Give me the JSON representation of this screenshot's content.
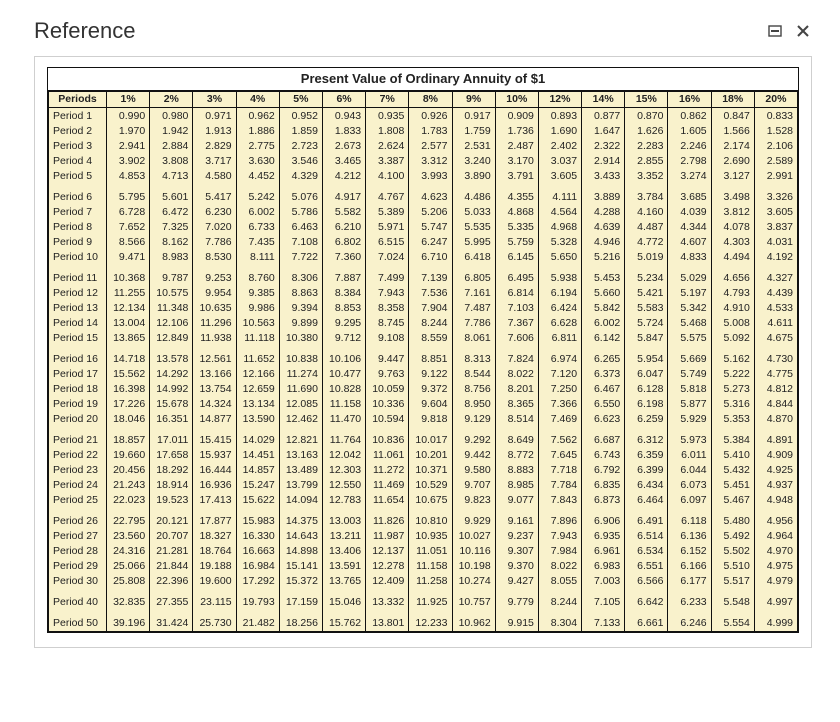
{
  "header": {
    "title": "Reference"
  },
  "table": {
    "caption": "Present Value of Ordinary Annuity of $1",
    "periods_header": "Periods",
    "rates": [
      "1%",
      "2%",
      "3%",
      "4%",
      "5%",
      "6%",
      "7%",
      "8%",
      "9%",
      "10%",
      "12%",
      "14%",
      "15%",
      "16%",
      "18%",
      "20%"
    ],
    "colors": {
      "cell_bg": "#f9f2cc",
      "border": "#111111",
      "caption_bg": "#ffffff"
    },
    "font_size_pt": 8,
    "rows": [
      {
        "label": "Period 1",
        "values": [
          "0.990",
          "0.980",
          "0.971",
          "0.962",
          "0.952",
          "0.943",
          "0.935",
          "0.926",
          "0.917",
          "0.909",
          "0.893",
          "0.877",
          "0.870",
          "0.862",
          "0.847",
          "0.833"
        ]
      },
      {
        "label": "Period 2",
        "values": [
          "1.970",
          "1.942",
          "1.913",
          "1.886",
          "1.859",
          "1.833",
          "1.808",
          "1.783",
          "1.759",
          "1.736",
          "1.690",
          "1.647",
          "1.626",
          "1.605",
          "1.566",
          "1.528"
        ]
      },
      {
        "label": "Period 3",
        "values": [
          "2.941",
          "2.884",
          "2.829",
          "2.775",
          "2.723",
          "2.673",
          "2.624",
          "2.577",
          "2.531",
          "2.487",
          "2.402",
          "2.322",
          "2.283",
          "2.246",
          "2.174",
          "2.106"
        ]
      },
      {
        "label": "Period 4",
        "values": [
          "3.902",
          "3.808",
          "3.717",
          "3.630",
          "3.546",
          "3.465",
          "3.387",
          "3.312",
          "3.240",
          "3.170",
          "3.037",
          "2.914",
          "2.855",
          "2.798",
          "2.690",
          "2.589"
        ]
      },
      {
        "label": "Period 5",
        "values": [
          "4.853",
          "4.713",
          "4.580",
          "4.452",
          "4.329",
          "4.212",
          "4.100",
          "3.993",
          "3.890",
          "3.791",
          "3.605",
          "3.433",
          "3.352",
          "3.274",
          "3.127",
          "2.991"
        ]
      },
      {
        "label": "Period 6",
        "values": [
          "5.795",
          "5.601",
          "5.417",
          "5.242",
          "5.076",
          "4.917",
          "4.767",
          "4.623",
          "4.486",
          "4.355",
          "4.111",
          "3.889",
          "3.784",
          "3.685",
          "3.498",
          "3.326"
        ]
      },
      {
        "label": "Period 7",
        "values": [
          "6.728",
          "6.472",
          "6.230",
          "6.002",
          "5.786",
          "5.582",
          "5.389",
          "5.206",
          "5.033",
          "4.868",
          "4.564",
          "4.288",
          "4.160",
          "4.039",
          "3.812",
          "3.605"
        ]
      },
      {
        "label": "Period 8",
        "values": [
          "7.652",
          "7.325",
          "7.020",
          "6.733",
          "6.463",
          "6.210",
          "5.971",
          "5.747",
          "5.535",
          "5.335",
          "4.968",
          "4.639",
          "4.487",
          "4.344",
          "4.078",
          "3.837"
        ]
      },
      {
        "label": "Period 9",
        "values": [
          "8.566",
          "8.162",
          "7.786",
          "7.435",
          "7.108",
          "6.802",
          "6.515",
          "6.247",
          "5.995",
          "5.759",
          "5.328",
          "4.946",
          "4.772",
          "4.607",
          "4.303",
          "4.031"
        ]
      },
      {
        "label": "Period 10",
        "values": [
          "9.471",
          "8.983",
          "8.530",
          "8.111",
          "7.722",
          "7.360",
          "7.024",
          "6.710",
          "6.418",
          "6.145",
          "5.650",
          "5.216",
          "5.019",
          "4.833",
          "4.494",
          "4.192"
        ]
      },
      {
        "label": "Period 11",
        "values": [
          "10.368",
          "9.787",
          "9.253",
          "8.760",
          "8.306",
          "7.887",
          "7.499",
          "7.139",
          "6.805",
          "6.495",
          "5.938",
          "5.453",
          "5.234",
          "5.029",
          "4.656",
          "4.327"
        ]
      },
      {
        "label": "Period 12",
        "values": [
          "11.255",
          "10.575",
          "9.954",
          "9.385",
          "8.863",
          "8.384",
          "7.943",
          "7.536",
          "7.161",
          "6.814",
          "6.194",
          "5.660",
          "5.421",
          "5.197",
          "4.793",
          "4.439"
        ]
      },
      {
        "label": "Period 13",
        "values": [
          "12.134",
          "11.348",
          "10.635",
          "9.986",
          "9.394",
          "8.853",
          "8.358",
          "7.904",
          "7.487",
          "7.103",
          "6.424",
          "5.842",
          "5.583",
          "5.342",
          "4.910",
          "4.533"
        ]
      },
      {
        "label": "Period 14",
        "values": [
          "13.004",
          "12.106",
          "11.296",
          "10.563",
          "9.899",
          "9.295",
          "8.745",
          "8.244",
          "7.786",
          "7.367",
          "6.628",
          "6.002",
          "5.724",
          "5.468",
          "5.008",
          "4.611"
        ]
      },
      {
        "label": "Period 15",
        "values": [
          "13.865",
          "12.849",
          "11.938",
          "11.118",
          "10.380",
          "9.712",
          "9.108",
          "8.559",
          "8.061",
          "7.606",
          "6.811",
          "6.142",
          "5.847",
          "5.575",
          "5.092",
          "4.675"
        ]
      },
      {
        "label": "Period 16",
        "values": [
          "14.718",
          "13.578",
          "12.561",
          "11.652",
          "10.838",
          "10.106",
          "9.447",
          "8.851",
          "8.313",
          "7.824",
          "6.974",
          "6.265",
          "5.954",
          "5.669",
          "5.162",
          "4.730"
        ]
      },
      {
        "label": "Period 17",
        "values": [
          "15.562",
          "14.292",
          "13.166",
          "12.166",
          "11.274",
          "10.477",
          "9.763",
          "9.122",
          "8.544",
          "8.022",
          "7.120",
          "6.373",
          "6.047",
          "5.749",
          "5.222",
          "4.775"
        ]
      },
      {
        "label": "Period 18",
        "values": [
          "16.398",
          "14.992",
          "13.754",
          "12.659",
          "11.690",
          "10.828",
          "10.059",
          "9.372",
          "8.756",
          "8.201",
          "7.250",
          "6.467",
          "6.128",
          "5.818",
          "5.273",
          "4.812"
        ]
      },
      {
        "label": "Period 19",
        "values": [
          "17.226",
          "15.678",
          "14.324",
          "13.134",
          "12.085",
          "11.158",
          "10.336",
          "9.604",
          "8.950",
          "8.365",
          "7.366",
          "6.550",
          "6.198",
          "5.877",
          "5.316",
          "4.844"
        ]
      },
      {
        "label": "Period 20",
        "values": [
          "18.046",
          "16.351",
          "14.877",
          "13.590",
          "12.462",
          "11.470",
          "10.594",
          "9.818",
          "9.129",
          "8.514",
          "7.469",
          "6.623",
          "6.259",
          "5.929",
          "5.353",
          "4.870"
        ]
      },
      {
        "label": "Period 21",
        "values": [
          "18.857",
          "17.011",
          "15.415",
          "14.029",
          "12.821",
          "11.764",
          "10.836",
          "10.017",
          "9.292",
          "8.649",
          "7.562",
          "6.687",
          "6.312",
          "5.973",
          "5.384",
          "4.891"
        ]
      },
      {
        "label": "Period 22",
        "values": [
          "19.660",
          "17.658",
          "15.937",
          "14.451",
          "13.163",
          "12.042",
          "11.061",
          "10.201",
          "9.442",
          "8.772",
          "7.645",
          "6.743",
          "6.359",
          "6.011",
          "5.410",
          "4.909"
        ]
      },
      {
        "label": "Period 23",
        "values": [
          "20.456",
          "18.292",
          "16.444",
          "14.857",
          "13.489",
          "12.303",
          "11.272",
          "10.371",
          "9.580",
          "8.883",
          "7.718",
          "6.792",
          "6.399",
          "6.044",
          "5.432",
          "4.925"
        ]
      },
      {
        "label": "Period 24",
        "values": [
          "21.243",
          "18.914",
          "16.936",
          "15.247",
          "13.799",
          "12.550",
          "11.469",
          "10.529",
          "9.707",
          "8.985",
          "7.784",
          "6.835",
          "6.434",
          "6.073",
          "5.451",
          "4.937"
        ]
      },
      {
        "label": "Period 25",
        "values": [
          "22.023",
          "19.523",
          "17.413",
          "15.622",
          "14.094",
          "12.783",
          "11.654",
          "10.675",
          "9.823",
          "9.077",
          "7.843",
          "6.873",
          "6.464",
          "6.097",
          "5.467",
          "4.948"
        ]
      },
      {
        "label": "Period 26",
        "values": [
          "22.795",
          "20.121",
          "17.877",
          "15.983",
          "14.375",
          "13.003",
          "11.826",
          "10.810",
          "9.929",
          "9.161",
          "7.896",
          "6.906",
          "6.491",
          "6.118",
          "5.480",
          "4.956"
        ]
      },
      {
        "label": "Period 27",
        "values": [
          "23.560",
          "20.707",
          "18.327",
          "16.330",
          "14.643",
          "13.211",
          "11.987",
          "10.935",
          "10.027",
          "9.237",
          "7.943",
          "6.935",
          "6.514",
          "6.136",
          "5.492",
          "4.964"
        ]
      },
      {
        "label": "Period 28",
        "values": [
          "24.316",
          "21.281",
          "18.764",
          "16.663",
          "14.898",
          "13.406",
          "12.137",
          "11.051",
          "10.116",
          "9.307",
          "7.984",
          "6.961",
          "6.534",
          "6.152",
          "5.502",
          "4.970"
        ]
      },
      {
        "label": "Period 29",
        "values": [
          "25.066",
          "21.844",
          "19.188",
          "16.984",
          "15.141",
          "13.591",
          "12.278",
          "11.158",
          "10.198",
          "9.370",
          "8.022",
          "6.983",
          "6.551",
          "6.166",
          "5.510",
          "4.975"
        ]
      },
      {
        "label": "Period 30",
        "values": [
          "25.808",
          "22.396",
          "19.600",
          "17.292",
          "15.372",
          "13.765",
          "12.409",
          "11.258",
          "10.274",
          "9.427",
          "8.055",
          "7.003",
          "6.566",
          "6.177",
          "5.517",
          "4.979"
        ]
      },
      {
        "label": "Period 40",
        "values": [
          "32.835",
          "27.355",
          "23.115",
          "19.793",
          "17.159",
          "15.046",
          "13.332",
          "11.925",
          "10.757",
          "9.779",
          "8.244",
          "7.105",
          "6.642",
          "6.233",
          "5.548",
          "4.997"
        ]
      },
      {
        "label": "Period 50",
        "values": [
          "39.196",
          "31.424",
          "25.730",
          "21.482",
          "18.256",
          "15.762",
          "13.801",
          "12.233",
          "10.962",
          "9.915",
          "8.304",
          "7.133",
          "6.661",
          "6.246",
          "5.554",
          "4.999"
        ]
      }
    ],
    "group_breaks_after_index": [
      4,
      9,
      14,
      19,
      24,
      29,
      30
    ]
  }
}
